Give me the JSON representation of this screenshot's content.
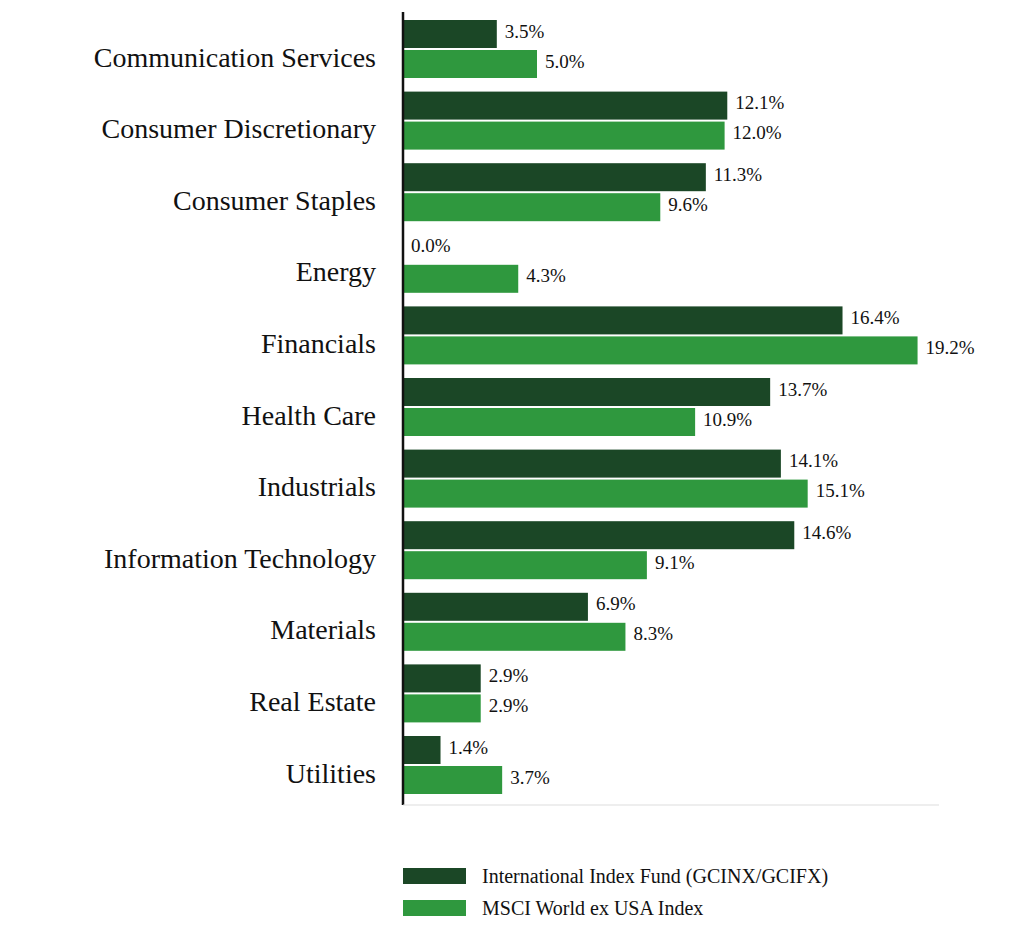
{
  "chart_data": {
    "type": "bar",
    "orientation": "horizontal",
    "data_labels": true,
    "legend": "bottom",
    "tick_labels": "y",
    "grid": false,
    "categories": [
      "Communication Services",
      "Consumer Discretionary",
      "Consumer Staples",
      "Energy",
      "Financials",
      "Health Care",
      "Industrials",
      "Information Technology",
      "Materials",
      "Real Estate",
      "Utilities"
    ],
    "xlim": [
      0,
      20
    ],
    "series": [
      {
        "name": "International Index Fund (GCINX/GCIFX)",
        "color": "#1b4726",
        "values": [
          3.5,
          12.1,
          11.3,
          0.0,
          16.4,
          13.7,
          14.1,
          14.6,
          6.9,
          2.9,
          1.4
        ],
        "value_labels": [
          "3.5%",
          "12.1%",
          "11.3%",
          "0.0%",
          "16.4%",
          "13.7%",
          "14.1%",
          "14.6%",
          "6.9%",
          "2.9%",
          "1.4%"
        ]
      },
      {
        "name": "MSCI World ex USA Index",
        "color": "#2f983e",
        "values": [
          5.0,
          12.0,
          9.6,
          4.3,
          19.2,
          10.9,
          15.1,
          9.1,
          8.3,
          2.9,
          3.7
        ],
        "value_labels": [
          "5.0%",
          "12.0%",
          "9.6%",
          "4.3%",
          "19.2%",
          "10.9%",
          "15.1%",
          "9.1%",
          "8.3%",
          "2.9%",
          "3.7%"
        ]
      }
    ]
  }
}
